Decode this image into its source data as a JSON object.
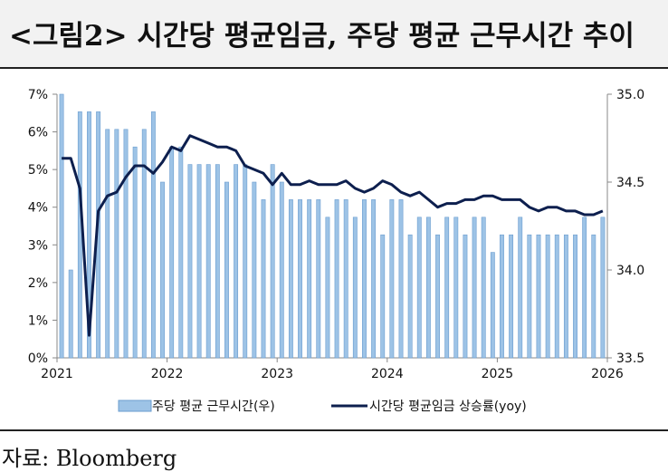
{
  "title": "<그림2> 시간당 평균임금, 주당 평균 근무시간 추이",
  "source": "자료: Bloomberg",
  "chart_data": {
    "type": "bar+line",
    "x_tick_labels": [
      "2021",
      "2022",
      "2023",
      "2024",
      "2025",
      "2026"
    ],
    "y_left": {
      "ticks": [
        "0%",
        "1%",
        "2%",
        "3%",
        "4%",
        "5%",
        "6%",
        "7%"
      ],
      "range": [
        0,
        7
      ]
    },
    "y_right": {
      "ticks": [
        "33.5",
        "34.0",
        "34.5",
        "35.0"
      ],
      "range": [
        33.5,
        35.0
      ]
    },
    "legend_position": "bottom",
    "series": [
      {
        "name": "주당 평균 근무시간(우)",
        "type": "bar",
        "axis": "right",
        "color": "#9dc3e6",
        "values": [
          35.0,
          34.0,
          34.9,
          34.9,
          34.9,
          34.8,
          34.8,
          34.8,
          34.7,
          34.8,
          34.9,
          34.5,
          34.7,
          34.7,
          34.6,
          34.6,
          34.6,
          34.6,
          34.5,
          34.6,
          34.6,
          34.5,
          34.4,
          34.6,
          34.5,
          34.4,
          34.4,
          34.4,
          34.4,
          34.3,
          34.4,
          34.4,
          34.3,
          34.4,
          34.4,
          34.2,
          34.4,
          34.4,
          34.2,
          34.3,
          34.3,
          34.2,
          34.3,
          34.3,
          34.2,
          34.3,
          34.3,
          34.1,
          34.2,
          34.2,
          34.3,
          34.2,
          34.2,
          34.2,
          34.2,
          34.2,
          34.2,
          34.3,
          34.2,
          34.3
        ]
      },
      {
        "name": "시간당 평균임금 상승률(yoy)",
        "type": "line",
        "axis": "left",
        "color": "#0d1f4e",
        "values": [
          5.3,
          5.3,
          4.5,
          0.6,
          3.9,
          4.3,
          4.4,
          4.8,
          5.1,
          5.1,
          4.9,
          5.2,
          5.6,
          5.5,
          5.9,
          5.8,
          5.7,
          5.6,
          5.6,
          5.5,
          5.1,
          5.0,
          4.9,
          4.6,
          4.9,
          4.6,
          4.6,
          4.7,
          4.6,
          4.6,
          4.6,
          4.7,
          4.5,
          4.4,
          4.5,
          4.7,
          4.6,
          4.4,
          4.3,
          4.4,
          4.2,
          4.0,
          4.1,
          4.1,
          4.2,
          4.2,
          4.3,
          4.3,
          4.2,
          4.2,
          4.2,
          4.0,
          3.9,
          4.0,
          4.0,
          3.9,
          3.9,
          3.8,
          3.8,
          3.9
        ]
      }
    ]
  }
}
